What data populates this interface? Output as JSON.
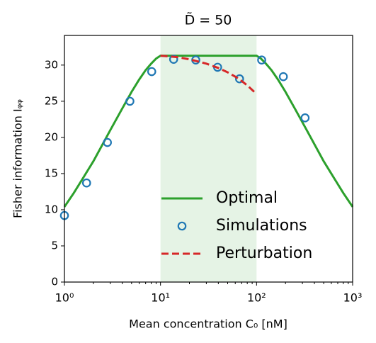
{
  "chart_data": {
    "type": "line",
    "title": "D̃ = 50",
    "xlabel": "Mean concentration C₀ [nM]",
    "ylabel": "Fisher information Iᵩᵩ",
    "xscale": "log",
    "xlim": [
      1,
      1000
    ],
    "ylim": [
      0,
      34.1
    ],
    "xticks": [
      {
        "value": 1,
        "label": "10⁰"
      },
      {
        "value": 10,
        "label": "10¹"
      },
      {
        "value": 100,
        "label": "10²"
      },
      {
        "value": 1000,
        "label": "10³"
      }
    ],
    "xminorticks": [
      2,
      3,
      4,
      5,
      6,
      7,
      8,
      9,
      20,
      30,
      40,
      50,
      60,
      70,
      80,
      90,
      200,
      300,
      400,
      500,
      600,
      700,
      800,
      900
    ],
    "yticks": [
      0,
      5,
      10,
      15,
      20,
      25,
      30
    ],
    "shaded_region": {
      "xlim": [
        10,
        100
      ],
      "color": "#2ca02c"
    },
    "legend": "lower right",
    "series": [
      {
        "name": "Optimal",
        "type": "line",
        "color": "#2ca02c",
        "x": [
          1,
          1.25,
          1.5,
          2,
          3,
          4,
          5,
          6,
          7,
          8,
          9,
          10,
          100,
          111,
          125,
          143,
          167,
          200,
          250,
          333,
          500,
          667,
          800,
          1000
        ],
        "values": [
          10.4,
          12.3,
          14.0,
          16.7,
          21.0,
          24.0,
          26.3,
          28.0,
          29.3,
          30.2,
          30.9,
          31.3,
          31.3,
          30.9,
          30.2,
          29.3,
          28.0,
          26.3,
          24.0,
          21.0,
          16.7,
          14.0,
          12.3,
          10.4
        ]
      },
      {
        "name": "Simulations",
        "type": "scatter",
        "color": "#1f77b4",
        "x": [
          1,
          1.7,
          2.8,
          4.8,
          8.1,
          13.7,
          23.3,
          39.3,
          66.5,
          113,
          190,
          320
        ],
        "values": [
          9.2,
          13.7,
          19.3,
          25.0,
          29.1,
          30.8,
          30.7,
          29.7,
          28.1,
          30.7,
          28.4,
          22.7
        ]
      },
      {
        "name": "Perturbation",
        "type": "dashed",
        "color": "#d62728",
        "x": [
          10,
          15,
          20,
          30,
          40,
          50,
          60,
          70,
          80,
          100
        ],
        "values": [
          31.3,
          31.1,
          30.8,
          30.2,
          29.6,
          29.0,
          28.4,
          27.8,
          27.2,
          26.0
        ]
      }
    ]
  }
}
